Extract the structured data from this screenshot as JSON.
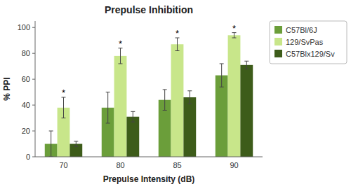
{
  "chart_data": {
    "type": "bar",
    "title": "Prepulse Inhibition",
    "xlabel": "Prepulse Intensity (dB)",
    "ylabel": "% PPI",
    "categories": [
      "70",
      "80",
      "85",
      "90"
    ],
    "series": [
      {
        "name": "C57Bl/6J",
        "color": "#6b9e3a",
        "values": [
          10,
          38,
          44,
          63
        ],
        "errors": [
          10,
          12,
          8,
          9
        ]
      },
      {
        "name": "129/SvPas",
        "color": "#c8e68a",
        "values": [
          38,
          78,
          87,
          94
        ],
        "errors": [
          8,
          6,
          5,
          2
        ]
      },
      {
        "name": "C57Blx129/Sv",
        "color": "#3d5c1a",
        "values": [
          10,
          31,
          46,
          71
        ],
        "errors": [
          2,
          4,
          5,
          3
        ]
      }
    ],
    "annotations": [
      {
        "text": "*",
        "category": "70",
        "series": "129/SvPas"
      },
      {
        "text": "*",
        "category": "80",
        "series": "129/SvPas"
      },
      {
        "text": "*",
        "category": "85",
        "series": "129/SvPas"
      },
      {
        "text": "*",
        "category": "90",
        "series": "129/SvPas"
      }
    ],
    "ylim": [
      0,
      105
    ],
    "yticks": [
      0,
      20,
      40,
      60,
      80,
      100
    ],
    "grid": false,
    "legend": "upper right"
  }
}
